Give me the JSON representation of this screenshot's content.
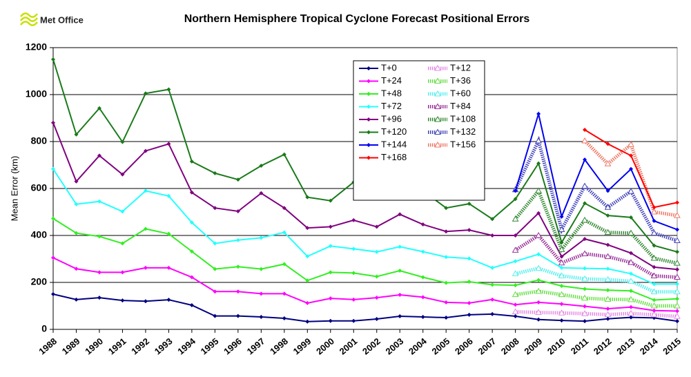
{
  "logo": "Met Office",
  "chart_data": {
    "type": "line",
    "title": "Northern Hemisphere Tropical Cyclone Forecast Positional Errors",
    "ylabel": "Mean Error (km)",
    "x": [
      1988,
      1989,
      1990,
      1991,
      1992,
      1993,
      1994,
      1995,
      1996,
      1997,
      1998,
      1999,
      2000,
      2001,
      2002,
      2003,
      2004,
      2005,
      2006,
      2007,
      2008,
      2009,
      2010,
      2011,
      2012,
      2013,
      2014,
      2015
    ],
    "xlim": [
      1988,
      2015
    ],
    "xticks": [
      1988,
      1989,
      1990,
      1991,
      1992,
      1993,
      1994,
      1995,
      1996,
      1997,
      1998,
      1999,
      2000,
      2001,
      2002,
      2003,
      2004,
      2005,
      2006,
      2007,
      2008,
      2009,
      2010,
      2011,
      2012,
      2013,
      2014,
      2015
    ],
    "ylim": [
      0,
      1200
    ],
    "yticks": [
      0,
      200,
      400,
      600,
      800,
      1000,
      1200
    ],
    "grid": true,
    "series": [
      {
        "name": "T+0",
        "color": "#000080",
        "style": "solid",
        "values": [
          150,
          127,
          135,
          123,
          120,
          126,
          103,
          57,
          57,
          53,
          47,
          33,
          36,
          36,
          44,
          56,
          53,
          50,
          62,
          65,
          56,
          42,
          38,
          35,
          45,
          51,
          49,
          35
        ]
      },
      {
        "name": "T+12",
        "color": "#e58ae5",
        "style": "hatched",
        "values": [
          null,
          null,
          null,
          null,
          null,
          null,
          null,
          null,
          null,
          null,
          null,
          null,
          null,
          null,
          null,
          null,
          null,
          null,
          null,
          null,
          75,
          72,
          70,
          67,
          63,
          68,
          62,
          55
        ]
      },
      {
        "name": "T+24",
        "color": "#ff00ff",
        "style": "solid",
        "values": [
          305,
          258,
          243,
          243,
          262,
          262,
          222,
          161,
          161,
          152,
          152,
          112,
          132,
          127,
          135,
          147,
          137,
          115,
          112,
          127,
          105,
          115,
          108,
          98,
          88,
          95,
          80,
          78
        ]
      },
      {
        "name": "T+36",
        "color": "#66dd44",
        "style": "hatched",
        "values": [
          null,
          null,
          null,
          null,
          null,
          null,
          null,
          null,
          null,
          null,
          null,
          null,
          null,
          null,
          null,
          null,
          null,
          null,
          null,
          null,
          148,
          162,
          148,
          133,
          128,
          127,
          100,
          100
        ]
      },
      {
        "name": "T+48",
        "color": "#33ee22",
        "style": "solid",
        "values": [
          472,
          410,
          396,
          366,
          428,
          407,
          332,
          257,
          267,
          257,
          278,
          208,
          243,
          240,
          225,
          250,
          222,
          198,
          203,
          190,
          188,
          210,
          185,
          172,
          167,
          164,
          125,
          130
        ]
      },
      {
        "name": "T+60",
        "color": "#55eeee",
        "style": "hatched",
        "values": [
          null,
          null,
          null,
          null,
          null,
          null,
          null,
          null,
          null,
          null,
          null,
          null,
          null,
          null,
          null,
          null,
          null,
          null,
          null,
          null,
          237,
          260,
          228,
          215,
          212,
          205,
          160,
          160
        ]
      },
      {
        "name": "T+72",
        "color": "#22ffff",
        "style": "solid",
        "values": [
          683,
          533,
          545,
          502,
          590,
          568,
          455,
          366,
          380,
          390,
          413,
          311,
          355,
          343,
          330,
          352,
          331,
          308,
          302,
          262,
          290,
          320,
          262,
          260,
          258,
          237,
          193,
          193
        ]
      },
      {
        "name": "T+84",
        "color": "#993399",
        "style": "hatched",
        "values": [
          null,
          null,
          null,
          null,
          null,
          null,
          null,
          null,
          null,
          null,
          null,
          null,
          null,
          null,
          null,
          null,
          null,
          null,
          null,
          null,
          337,
          400,
          283,
          322,
          310,
          285,
          228,
          222
        ]
      },
      {
        "name": "T+96",
        "color": "#800080",
        "style": "solid",
        "values": [
          880,
          630,
          740,
          660,
          760,
          790,
          583,
          517,
          503,
          580,
          517,
          432,
          437,
          465,
          437,
          490,
          447,
          417,
          423,
          400,
          400,
          495,
          310,
          385,
          360,
          325,
          265,
          255
        ]
      },
      {
        "name": "T+108",
        "color": "#338833",
        "style": "hatched",
        "values": [
          null,
          null,
          null,
          null,
          null,
          null,
          null,
          null,
          null,
          null,
          null,
          null,
          null,
          null,
          null,
          null,
          null,
          null,
          null,
          null,
          470,
          590,
          340,
          465,
          413,
          410,
          303,
          282
        ]
      },
      {
        "name": "T+120",
        "color": "#1a7a1a",
        "style": "solid",
        "values": [
          1150,
          830,
          942,
          798,
          1005,
          1022,
          715,
          665,
          638,
          697,
          745,
          563,
          548,
          627,
          580,
          613,
          590,
          517,
          535,
          470,
          555,
          707,
          370,
          537,
          485,
          477,
          357,
          330
        ]
      },
      {
        "name": "T+132",
        "color": "#4444bb",
        "style": "hatched",
        "values": [
          null,
          null,
          null,
          null,
          null,
          null,
          null,
          null,
          null,
          null,
          null,
          null,
          null,
          null,
          null,
          null,
          null,
          null,
          null,
          null,
          595,
          803,
          425,
          610,
          520,
          588,
          410,
          378
        ]
      },
      {
        "name": "T+144",
        "color": "#0000ee",
        "style": "solid",
        "values": [
          null,
          null,
          null,
          null,
          null,
          null,
          null,
          null,
          null,
          null,
          null,
          null,
          null,
          null,
          null,
          null,
          null,
          null,
          null,
          null,
          590,
          918,
          480,
          723,
          590,
          683,
          462,
          425
        ]
      },
      {
        "name": "T+156",
        "color": "#ee7766",
        "style": "hatched",
        "values": [
          null,
          null,
          null,
          null,
          null,
          null,
          null,
          null,
          null,
          null,
          null,
          null,
          null,
          null,
          null,
          null,
          null,
          null,
          null,
          null,
          null,
          null,
          null,
          803,
          705,
          787,
          500,
          485
        ]
      },
      {
        "name": "T+168",
        "color": "#ff0000",
        "style": "solid",
        "values": [
          null,
          null,
          null,
          null,
          null,
          null,
          null,
          null,
          null,
          null,
          null,
          null,
          null,
          null,
          null,
          null,
          null,
          null,
          null,
          null,
          null,
          null,
          null,
          850,
          790,
          740,
          520,
          540
        ]
      }
    ]
  }
}
